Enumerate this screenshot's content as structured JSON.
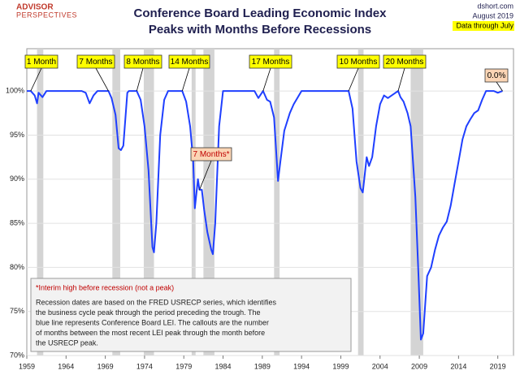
{
  "chart_data": {
    "type": "line",
    "title": [
      "Conference Board Leading Economic Index",
      "Peaks with Months Before Recessions"
    ],
    "logo": [
      "ADVISOR",
      "PERSPECTIVES"
    ],
    "source": "dshort.com",
    "date": "August 2019",
    "data_note": "Data through July",
    "xlim": [
      1959,
      2021
    ],
    "xticks": [
      1959,
      1964,
      1969,
      1974,
      1979,
      1984,
      1989,
      1994,
      1999,
      2004,
      2009,
      2014,
      2019
    ],
    "ylim": [
      70,
      104.8
    ],
    "yticks": [
      {
        "value": 70,
        "label": "70%"
      },
      {
        "value": 75,
        "label": "75%"
      },
      {
        "value": 80,
        "label": "80%"
      },
      {
        "value": 85,
        "label": "85%"
      },
      {
        "value": 90,
        "label": "90%"
      },
      {
        "value": 95,
        "label": "95%"
      },
      {
        "value": 100,
        "label": "100%"
      }
    ],
    "grid": true,
    "recessions": [
      [
        1960.3,
        1961.1
      ],
      [
        1969.9,
        1970.9
      ],
      [
        1973.9,
        1975.2
      ],
      [
        1980.0,
        1980.5
      ],
      [
        1981.5,
        1982.9
      ],
      [
        1990.5,
        1991.2
      ],
      [
        2001.2,
        2001.9
      ],
      [
        2007.9,
        2009.5
      ]
    ],
    "recession_color": "#d4d4d4",
    "series": [
      {
        "name": "Conference Board LEI",
        "color": "#1f3fff",
        "x": [
          1959.0,
          1959.5,
          1960.0,
          1960.3,
          1960.5,
          1961.0,
          1961.5,
          1966.0,
          1966.5,
          1967.0,
          1967.5,
          1968.0,
          1969.4,
          1969.8,
          1970.3,
          1970.7,
          1971.0,
          1971.3,
          1971.8,
          1972.0,
          1973.0,
          1973.5,
          1974.0,
          1974.5,
          1975.0,
          1975.2,
          1975.5,
          1976.0,
          1976.5,
          1977.0,
          1978.8,
          1979.3,
          1979.8,
          1980.2,
          1980.4,
          1980.8,
          1981.0,
          1981.3,
          1981.6,
          1982.0,
          1982.5,
          1982.7,
          1983.0,
          1983.5,
          1984.0,
          1988.0,
          1988.5,
          1989.1,
          1989.6,
          1990.0,
          1990.5,
          1991.0,
          1991.3,
          1991.8,
          1992.5,
          1993.0,
          1994.0,
          2000.0,
          2000.5,
          2001.0,
          2001.5,
          2001.8,
          2002.3,
          2002.6,
          2003.0,
          2003.5,
          2004.0,
          2004.5,
          2005.0,
          2006.3,
          2006.6,
          2007.0,
          2007.5,
          2007.9,
          2008.5,
          2008.9,
          2009.2,
          2009.5,
          2010.0,
          2010.5,
          2011.0,
          2011.5,
          2012.0,
          2012.5,
          2013.0,
          2013.5,
          2014.0,
          2014.5,
          2015.0,
          2015.5,
          2016.0,
          2016.5,
          2017.0,
          2017.5,
          2018.5,
          2019.0,
          2019.3,
          2019.6
        ],
        "values": [
          100,
          100,
          99.5,
          98.6,
          99.8,
          99.3,
          100,
          100,
          99.8,
          98.6,
          99.5,
          100,
          100,
          99.2,
          97.3,
          93.5,
          93.3,
          93.8,
          99.8,
          100,
          100,
          99,
          96,
          91,
          82.3,
          81.7,
          85,
          95,
          99,
          100,
          100,
          98.8,
          96,
          92,
          86.7,
          90,
          88.8,
          88.8,
          86.5,
          84,
          82,
          81.5,
          85,
          96,
          100,
          100,
          99.2,
          100,
          99,
          98.8,
          97,
          89.8,
          92,
          95.5,
          97.5,
          98.5,
          100,
          100,
          98,
          92,
          89,
          88.5,
          92.5,
          91.5,
          92.5,
          96,
          98.5,
          99.5,
          99.2,
          100,
          99.3,
          98.8,
          97.5,
          96,
          88,
          79,
          71.8,
          72.5,
          79,
          80,
          82,
          83.6,
          84.5,
          85.2,
          87,
          89.5,
          92,
          94.5,
          96,
          96.8,
          97.5,
          97.8,
          99,
          100,
          100,
          99.8,
          99.9,
          100
        ]
      }
    ],
    "annotations": [
      {
        "text": "1 Month",
        "x": 1959.5,
        "y": 100,
        "color": "#ffff00",
        "text_color": "#000000"
      },
      {
        "text": "7 Months",
        "x": 1969.4,
        "y": 100,
        "color": "#ffff00",
        "text_color": "#000000"
      },
      {
        "text": "8 Months",
        "x": 1973.0,
        "y": 100,
        "color": "#ffff00",
        "text_color": "#000000"
      },
      {
        "text": "14 Months",
        "x": 1978.8,
        "y": 100,
        "color": "#ffff00",
        "text_color": "#000000"
      },
      {
        "text": "17 Months",
        "x": 1989.1,
        "y": 100,
        "color": "#ffff00",
        "text_color": "#000000"
      },
      {
        "text": "10 Months",
        "x": 2000.0,
        "y": 100,
        "color": "#ffff00",
        "text_color": "#000000"
      },
      {
        "text": "20 Months",
        "x": 2006.3,
        "y": 100,
        "color": "#ffff00",
        "text_color": "#000000"
      },
      {
        "text": "7 Months*",
        "x": 1981.0,
        "y": 88.8,
        "color": "#fbd5b5",
        "text_color": "#c00000"
      },
      {
        "text": "0.0%",
        "x": 2019.6,
        "y": 100,
        "color": "#fbd5b5",
        "text_color": "#000000"
      }
    ],
    "footnote": {
      "highlight": "*Interim high before recession (not a peak)",
      "lines": [
        "Recession dates are based on the FRED USRECP series, which identifies",
        "the business cycle peak through the period preceding the trough. The",
        "blue line represents Conference Board LEI. The callouts are the number",
        "of months between the most recent LEI peak through the month  before",
        "the USRECP peak."
      ]
    }
  }
}
